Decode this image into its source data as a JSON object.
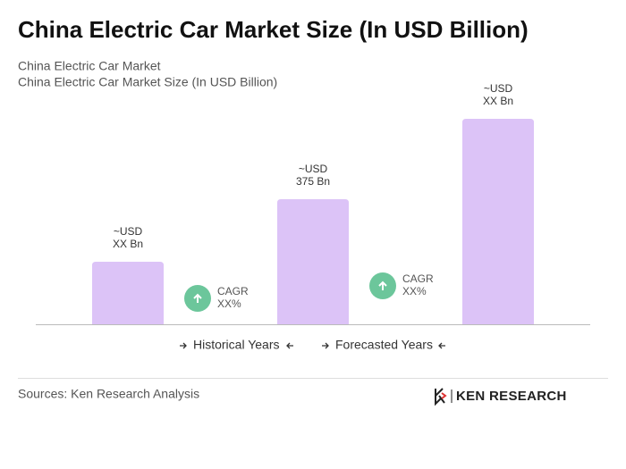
{
  "chart_data": {
    "type": "bar",
    "title": "China Electric Car Market Size (In USD Billion)",
    "subtitle": [
      "China Electric Car Market",
      "China Electric Car Market Size (In USD Billion)"
    ],
    "values": [
      187.5,
      375,
      616
    ],
    "value_labels": [
      [
        "~USD",
        "XX Bn"
      ],
      [
        "~USD",
        "375 Bn"
      ],
      [
        "~USD",
        "XX Bn"
      ]
    ],
    "color": "#dcc3f7",
    "annotations": [
      {
        "label": "CAGR",
        "value": "XX%"
      },
      {
        "label": "CAGR",
        "value": "XX%"
      }
    ],
    "annotation_color": "#6cc69b",
    "legend": [
      "Historical Years",
      "Forecasted Years"
    ],
    "source": "Sources: Ken Research Analysis",
    "logo": "KEN RESEARCH"
  }
}
